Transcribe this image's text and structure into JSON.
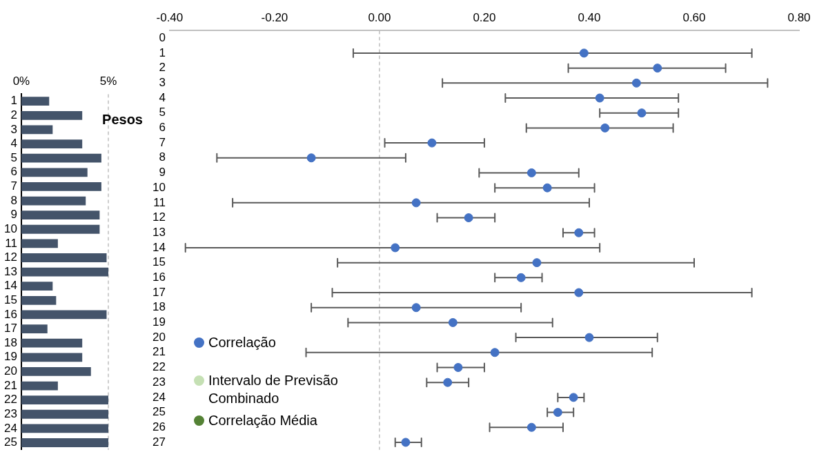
{
  "chart_data": [
    {
      "type": "bar",
      "orientation": "horizontal",
      "title": "Pesos",
      "categories": [
        "1",
        "2",
        "3",
        "4",
        "5",
        "6",
        "7",
        "8",
        "9",
        "10",
        "11",
        "12",
        "13",
        "14",
        "15",
        "16",
        "17",
        "18",
        "19",
        "20",
        "21",
        "22",
        "23",
        "24",
        "25"
      ],
      "values": [
        1.6,
        3.5,
        1.8,
        3.5,
        4.6,
        3.8,
        4.6,
        3.7,
        4.5,
        4.5,
        2.1,
        4.9,
        5.0,
        1.8,
        2.0,
        4.9,
        1.5,
        3.5,
        3.5,
        4.0,
        2.1,
        5.0,
        5.0,
        5.0,
        5.0
      ],
      "color": "#44546a",
      "xlim": [
        0,
        5
      ],
      "xticks": [
        {
          "value": 0,
          "label": "0%"
        },
        {
          "value": 5,
          "label": "5%"
        }
      ],
      "ref_lines": [
        {
          "axis": "x",
          "value": 5,
          "color": "#bfbfbf",
          "line_style": "dashed"
        }
      ]
    },
    {
      "type": "scatter",
      "orientation": "horizontal",
      "categories": [
        "0",
        "1",
        "2",
        "3",
        "4",
        "5",
        "6",
        "7",
        "8",
        "9",
        "10",
        "11",
        "12",
        "13",
        "14",
        "15",
        "16",
        "17",
        "18",
        "19",
        "20",
        "21",
        "22",
        "23",
        "24",
        "25",
        "26",
        "27"
      ],
      "series": [
        {
          "name": "Correlação",
          "color": "#4472c4",
          "values": [
            null,
            0.39,
            0.53,
            0.49,
            0.42,
            0.5,
            0.43,
            0.1,
            -0.13,
            0.29,
            0.32,
            0.07,
            0.17,
            0.38,
            0.03,
            0.3,
            0.27,
            0.38,
            0.07,
            0.14,
            0.4,
            0.22,
            0.15,
            0.13,
            0.37,
            0.34,
            0.29,
            0.05
          ],
          "errors": [
            null,
            [
              -0.05,
              0.71
            ],
            [
              0.36,
              0.66
            ],
            [
              0.12,
              0.74
            ],
            [
              0.24,
              0.57
            ],
            [
              0.42,
              0.57
            ],
            [
              0.28,
              0.56
            ],
            [
              0.01,
              0.2
            ],
            [
              -0.31,
              0.05
            ],
            [
              0.19,
              0.38
            ],
            [
              0.22,
              0.41
            ],
            [
              -0.28,
              0.4
            ],
            [
              0.11,
              0.22
            ],
            [
              0.35,
              0.41
            ],
            [
              -0.37,
              0.42
            ],
            [
              -0.08,
              0.6
            ],
            [
              0.22,
              0.31
            ],
            [
              -0.09,
              0.71
            ],
            [
              -0.13,
              0.27
            ],
            [
              -0.06,
              0.33
            ],
            [
              0.26,
              0.53
            ],
            [
              -0.14,
              0.52
            ],
            [
              0.11,
              0.2
            ],
            [
              0.09,
              0.17
            ],
            [
              0.34,
              0.39
            ],
            [
              0.32,
              0.37
            ],
            [
              0.21,
              0.35
            ],
            [
              0.03,
              0.08
            ]
          ]
        },
        {
          "name": "Intervalo de Previsão Combinado",
          "color": "#c5e0b4",
          "values": [
            null,
            null,
            null,
            null,
            null,
            null,
            null,
            null,
            null,
            null,
            null,
            null,
            null,
            null,
            null,
            null,
            null,
            null,
            null,
            null,
            null,
            null,
            null,
            null,
            null,
            null,
            null,
            null
          ]
        },
        {
          "name": "Correlação Média",
          "color": "#548235",
          "values": [
            null,
            null,
            null,
            null,
            null,
            null,
            null,
            null,
            null,
            null,
            null,
            null,
            null,
            null,
            null,
            null,
            null,
            null,
            null,
            null,
            null,
            null,
            null,
            null,
            null,
            null,
            null,
            null
          ]
        }
      ],
      "xlim": [
        -0.4,
        0.8
      ],
      "xticks": [
        {
          "value": -0.4,
          "label": "-0.40"
        },
        {
          "value": -0.2,
          "label": "-0.20"
        },
        {
          "value": 0,
          "label": "0.00"
        },
        {
          "value": 0.2,
          "label": "0.20"
        },
        {
          "value": 0.4,
          "label": "0.40"
        },
        {
          "value": 0.6,
          "label": "0.60"
        },
        {
          "value": 0.8,
          "label": "0.80"
        }
      ],
      "legend": "bottom left",
      "marker": "circle",
      "ref_lines": [
        {
          "axis": "x",
          "value": 0,
          "color": "#bfbfbf",
          "line_style": "dashed"
        }
      ]
    }
  ]
}
